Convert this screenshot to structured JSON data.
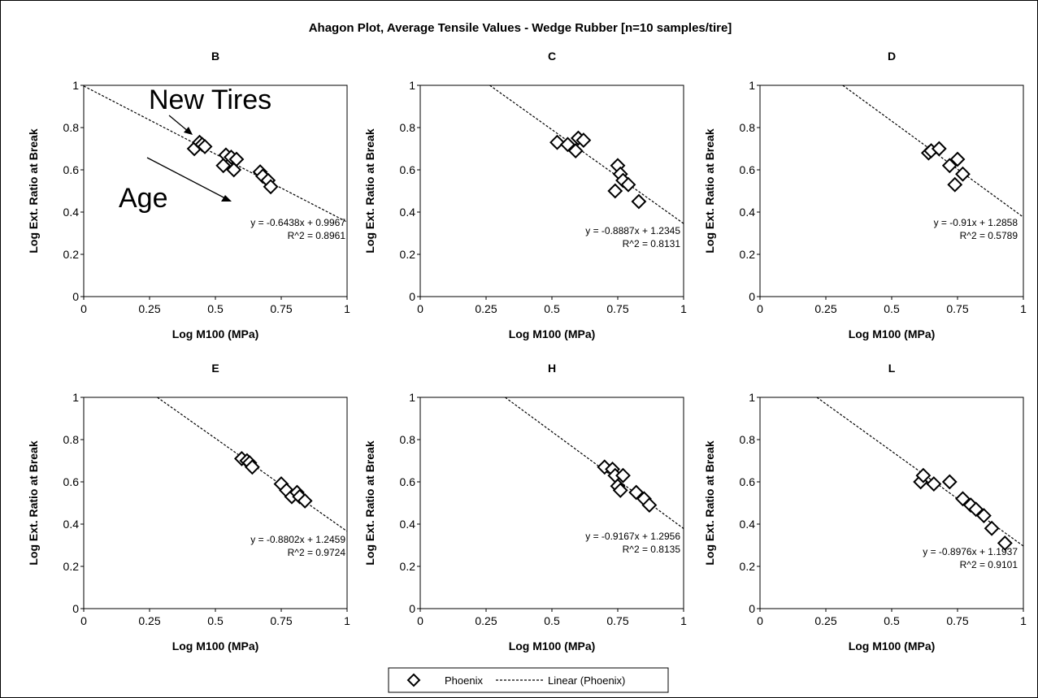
{
  "chart_data": {
    "type": "scatter",
    "title": "Ahagon Plot, Average Tensile Values - Wedge Rubber [n=10 samples/tire]",
    "legend": {
      "placement": "bottom",
      "entries": [
        {
          "label": "Phoenix",
          "marker": "diamond"
        },
        {
          "label": "Linear (Phoenix)",
          "line": "dashed"
        }
      ]
    },
    "x_ticks": [
      "0",
      "0.25",
      "0.5",
      "0.75",
      "1"
    ],
    "y_ticks": [
      "0",
      "0.2",
      "0.4",
      "0.6",
      "0.8",
      "1"
    ],
    "panels": [
      {
        "title": "B",
        "xlabel": "Log M100 (MPa)",
        "ylabel": "Log Ext. Ratio at Break",
        "xlim": [
          0,
          1
        ],
        "ylim": [
          0,
          1
        ],
        "points": [
          [
            0.42,
            0.7
          ],
          [
            0.44,
            0.73
          ],
          [
            0.45,
            0.72
          ],
          [
            0.46,
            0.71
          ],
          [
            0.53,
            0.62
          ],
          [
            0.54,
            0.67
          ],
          [
            0.56,
            0.66
          ],
          [
            0.57,
            0.6
          ],
          [
            0.58,
            0.65
          ],
          [
            0.67,
            0.59
          ],
          [
            0.68,
            0.57
          ],
          [
            0.7,
            0.55
          ],
          [
            0.71,
            0.52
          ]
        ],
        "trend": {
          "slope": -0.6438,
          "intercept": 0.9967
        },
        "equation": "y =  -0.6438x + 0.9967",
        "r2": "R^2 = 0.8961",
        "annotations": {
          "new_tires": "New Tires",
          "age": "Age"
        }
      },
      {
        "title": "C",
        "xlabel": "Log M100 (MPa)",
        "ylabel": "Log Ext. Ratio at Break",
        "xlim": [
          0,
          1
        ],
        "ylim": [
          0,
          1
        ],
        "points": [
          [
            0.52,
            0.73
          ],
          [
            0.56,
            0.72
          ],
          [
            0.59,
            0.69
          ],
          [
            0.6,
            0.75
          ],
          [
            0.62,
            0.74
          ],
          [
            0.74,
            0.5
          ],
          [
            0.75,
            0.62
          ],
          [
            0.76,
            0.58
          ],
          [
            0.77,
            0.55
          ],
          [
            0.79,
            0.53
          ],
          [
            0.83,
            0.45
          ]
        ],
        "trend": {
          "slope": -0.8887,
          "intercept": 1.2345
        },
        "equation": "y =  -0.8887x + 1.2345",
        "r2": "R^2 = 0.8131"
      },
      {
        "title": "D",
        "xlabel": "Log M100 (MPa)",
        "ylabel": "Log Ext. Ratio at Break",
        "xlim": [
          0,
          1
        ],
        "ylim": [
          0,
          1
        ],
        "points": [
          [
            0.64,
            0.68
          ],
          [
            0.65,
            0.69
          ],
          [
            0.68,
            0.7
          ],
          [
            0.72,
            0.62
          ],
          [
            0.74,
            0.53
          ],
          [
            0.75,
            0.65
          ],
          [
            0.77,
            0.58
          ]
        ],
        "trend": {
          "slope": -0.91,
          "intercept": 1.2858
        },
        "equation": "y =  -0.91x + 1.2858",
        "r2": "R^2 = 0.5789"
      },
      {
        "title": "E",
        "xlabel": "Log M100 (MPa)",
        "ylabel": "Log Ext. Ratio at Break",
        "xlim": [
          0,
          1
        ],
        "ylim": [
          0,
          1
        ],
        "points": [
          [
            0.6,
            0.71
          ],
          [
            0.62,
            0.7
          ],
          [
            0.63,
            0.69
          ],
          [
            0.64,
            0.67
          ],
          [
            0.75,
            0.59
          ],
          [
            0.77,
            0.56
          ],
          [
            0.79,
            0.53
          ],
          [
            0.81,
            0.55
          ],
          [
            0.82,
            0.53
          ],
          [
            0.84,
            0.51
          ]
        ],
        "trend": {
          "slope": -0.8802,
          "intercept": 1.2459
        },
        "equation": "y =  -0.8802x + 1.2459",
        "r2": "R^2 = 0.9724"
      },
      {
        "title": "H",
        "xlabel": "Log M100 (MPa)",
        "ylabel": "Log Ext. Ratio at Break",
        "xlim": [
          0,
          1
        ],
        "ylim": [
          0,
          1
        ],
        "points": [
          [
            0.7,
            0.67
          ],
          [
            0.73,
            0.66
          ],
          [
            0.74,
            0.63
          ],
          [
            0.75,
            0.58
          ],
          [
            0.76,
            0.56
          ],
          [
            0.77,
            0.63
          ],
          [
            0.82,
            0.55
          ],
          [
            0.85,
            0.52
          ],
          [
            0.87,
            0.49
          ]
        ],
        "trend": {
          "slope": -0.9167,
          "intercept": 1.2956
        },
        "equation": "y =  -0.9167x + 1.2956",
        "r2": "R^2 = 0.8135"
      },
      {
        "title": "L",
        "xlabel": "Log M100 (MPa)",
        "ylabel": "Log Ext. Ratio at Break",
        "xlim": [
          0,
          1
        ],
        "ylim": [
          0,
          1
        ],
        "points": [
          [
            0.61,
            0.6
          ],
          [
            0.62,
            0.63
          ],
          [
            0.66,
            0.59
          ],
          [
            0.72,
            0.6
          ],
          [
            0.77,
            0.52
          ],
          [
            0.8,
            0.49
          ],
          [
            0.82,
            0.47
          ],
          [
            0.85,
            0.44
          ],
          [
            0.88,
            0.38
          ],
          [
            0.93,
            0.31
          ]
        ],
        "trend": {
          "slope": -0.8976,
          "intercept": 1.1937
        },
        "equation": "y =  -0.8976x + 1.1937",
        "r2": "R^2 = 0.9101"
      }
    ]
  }
}
